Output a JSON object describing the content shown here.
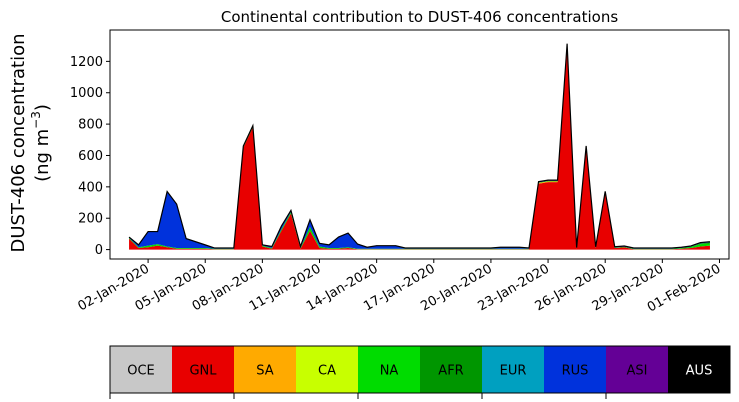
{
  "chart_data": {
    "type": "area",
    "title": "Continental contribution to DUST-406 concentrations",
    "ylabel_line1": "DUST-406 concentration",
    "ylabel_line2": "(ng m",
    "ylabel_unit_sup": "−3",
    "ylabel_close": ")",
    "xlabel": "",
    "ylim": [
      -60,
      1400
    ],
    "yticks": [
      0,
      200,
      400,
      600,
      800,
      1000,
      1200
    ],
    "xlim": [
      -1.0,
      31.5
    ],
    "xtick_days": [
      1,
      4,
      7,
      10,
      13,
      16,
      19,
      22,
      25,
      28,
      31
    ],
    "xtick_labels": [
      "02-Jan-2020",
      "05-Jan-2020",
      "08-Jan-2020",
      "11-Jan-2020",
      "14-Jan-2020",
      "17-Jan-2020",
      "20-Jan-2020",
      "23-Jan-2020",
      "26-Jan-2020",
      "29-Jan-2020",
      "01-Feb-2020"
    ],
    "x_day": [
      0.0,
      0.5,
      1.0,
      1.5,
      2.0,
      2.5,
      3.0,
      3.5,
      4.0,
      4.5,
      5.0,
      5.5,
      6.0,
      6.5,
      7.0,
      7.5,
      8.0,
      8.5,
      9.0,
      9.5,
      10.0,
      10.5,
      11.0,
      11.5,
      12.0,
      12.5,
      13.0,
      13.5,
      14.0,
      14.5,
      15.0,
      15.5,
      16.0,
      16.5,
      17.0,
      17.5,
      18.0,
      18.5,
      19.0,
      19.5,
      20.0,
      20.5,
      21.0,
      21.5,
      22.0,
      22.5,
      23.0,
      23.5,
      24.0,
      24.5,
      25.0,
      25.5,
      26.0,
      26.5,
      27.0,
      27.5,
      28.0,
      28.5,
      29.0,
      29.5,
      30.0,
      30.5
    ],
    "series": [
      {
        "name": "OCE",
        "color": "#c8c8c8",
        "values": [
          0,
          0,
          0,
          0,
          0,
          0,
          0,
          0,
          0,
          0,
          0,
          0,
          0,
          0,
          0,
          0,
          0,
          0,
          0,
          0,
          0,
          0,
          0,
          0,
          0,
          0,
          0,
          0,
          0,
          0,
          0,
          0,
          0,
          0,
          0,
          0,
          0,
          0,
          0,
          0,
          0,
          0,
          0,
          0,
          0,
          0,
          0,
          0,
          0,
          0,
          0,
          0,
          0,
          0,
          0,
          0,
          0,
          0,
          0,
          0,
          0,
          0
        ]
      },
      {
        "name": "GNL",
        "color": "#e80000",
        "values": [
          70,
          10,
          15,
          25,
          15,
          5,
          5,
          5,
          5,
          2,
          2,
          2,
          650,
          780,
          20,
          5,
          120,
          230,
          5,
          120,
          10,
          5,
          5,
          10,
          2,
          2,
          2,
          2,
          2,
          2,
          2,
          2,
          2,
          2,
          2,
          2,
          2,
          2,
          2,
          2,
          2,
          2,
          2,
          420,
          430,
          430,
          1300,
          5,
          650,
          10,
          360,
          10,
          15,
          2,
          2,
          2,
          2,
          2,
          5,
          10,
          20,
          25
        ]
      },
      {
        "name": "SA",
        "color": "#ffaa00",
        "values": [
          0,
          0,
          0,
          0,
          0,
          0,
          0,
          0,
          0,
          0,
          0,
          0,
          0,
          0,
          0,
          0,
          0,
          0,
          0,
          0,
          0,
          0,
          0,
          0,
          0,
          0,
          0,
          0,
          0,
          0,
          0,
          0,
          0,
          0,
          0,
          0,
          0,
          0,
          0,
          0,
          0,
          0,
          0,
          5,
          5,
          5,
          5,
          0,
          3,
          0,
          3,
          0,
          0,
          0,
          0,
          0,
          0,
          0,
          0,
          0,
          0,
          0
        ]
      },
      {
        "name": "CA",
        "color": "#c8ff00",
        "values": [
          0,
          0,
          0,
          0,
          0,
          0,
          0,
          0,
          0,
          0,
          0,
          0,
          0,
          0,
          0,
          0,
          0,
          0,
          0,
          0,
          0,
          0,
          0,
          0,
          0,
          0,
          0,
          0,
          0,
          0,
          0,
          0,
          0,
          0,
          0,
          0,
          0,
          0,
          0,
          0,
          0,
          0,
          0,
          0,
          0,
          0,
          0,
          0,
          0,
          0,
          0,
          0,
          0,
          0,
          0,
          0,
          0,
          0,
          0,
          0,
          0,
          0
        ]
      },
      {
        "name": "NA",
        "color": "#00dc00",
        "values": [
          5,
          5,
          10,
          10,
          5,
          5,
          5,
          5,
          5,
          3,
          3,
          3,
          5,
          5,
          5,
          5,
          10,
          10,
          5,
          25,
          10,
          5,
          5,
          5,
          3,
          3,
          3,
          3,
          3,
          3,
          3,
          3,
          3,
          3,
          3,
          3,
          3,
          3,
          3,
          3,
          3,
          3,
          3,
          3,
          3,
          3,
          3,
          3,
          3,
          3,
          3,
          3,
          3,
          3,
          3,
          3,
          3,
          3,
          5,
          8,
          15,
          15
        ]
      },
      {
        "name": "AFR",
        "color": "#009600",
        "values": [
          0,
          0,
          0,
          0,
          0,
          0,
          0,
          0,
          0,
          0,
          0,
          0,
          0,
          0,
          0,
          0,
          0,
          0,
          0,
          0,
          0,
          0,
          0,
          0,
          0,
          0,
          0,
          0,
          0,
          0,
          0,
          0,
          0,
          0,
          0,
          0,
          0,
          0,
          0,
          0,
          0,
          0,
          0,
          0,
          0,
          0,
          0,
          0,
          0,
          0,
          0,
          0,
          0,
          0,
          0,
          0,
          0,
          0,
          0,
          0,
          5,
          5
        ]
      },
      {
        "name": "EUR",
        "color": "#00a0c0",
        "values": [
          0,
          0,
          0,
          0,
          0,
          0,
          0,
          0,
          0,
          0,
          0,
          0,
          0,
          0,
          0,
          0,
          0,
          0,
          0,
          0,
          0,
          0,
          0,
          0,
          0,
          0,
          0,
          0,
          0,
          0,
          0,
          0,
          0,
          0,
          0,
          0,
          0,
          0,
          0,
          0,
          0,
          0,
          0,
          0,
          0,
          0,
          0,
          0,
          0,
          0,
          0,
          0,
          0,
          0,
          0,
          0,
          0,
          0,
          0,
          0,
          0,
          0
        ]
      },
      {
        "name": "RUS",
        "color": "#0032dc",
        "values": [
          5,
          15,
          90,
          80,
          350,
          280,
          60,
          40,
          20,
          5,
          5,
          5,
          5,
          5,
          5,
          10,
          20,
          10,
          10,
          45,
          20,
          20,
          70,
          90,
          30,
          10,
          20,
          20,
          20,
          5,
          5,
          5,
          5,
          5,
          5,
          5,
          5,
          5,
          5,
          10,
          10,
          10,
          5,
          5,
          5,
          5,
          5,
          5,
          5,
          5,
          5,
          5,
          5,
          5,
          5,
          5,
          5,
          5,
          5,
          5,
          5,
          5
        ]
      },
      {
        "name": "ASI",
        "color": "#640096",
        "values": [
          0,
          0,
          0,
          0,
          0,
          0,
          0,
          0,
          0,
          0,
          0,
          0,
          0,
          0,
          0,
          0,
          0,
          0,
          0,
          0,
          0,
          0,
          0,
          0,
          0,
          0,
          0,
          0,
          0,
          0,
          0,
          0,
          0,
          0,
          0,
          0,
          0,
          0,
          0,
          0,
          0,
          0,
          0,
          0,
          0,
          0,
          0,
          0,
          0,
          0,
          0,
          0,
          0,
          0,
          0,
          0,
          0,
          0,
          0,
          0,
          0,
          0
        ]
      },
      {
        "name": "AUS",
        "color": "#000000",
        "values": [
          0,
          0,
          0,
          0,
          0,
          0,
          0,
          0,
          0,
          0,
          0,
          0,
          0,
          0,
          0,
          0,
          0,
          0,
          0,
          0,
          0,
          0,
          0,
          0,
          0,
          0,
          0,
          0,
          0,
          0,
          0,
          0,
          0,
          0,
          0,
          0,
          0,
          0,
          0,
          0,
          0,
          0,
          0,
          0,
          0,
          0,
          0,
          0,
          0,
          0,
          0,
          0,
          0,
          0,
          0,
          0,
          0,
          0,
          0,
          0,
          0,
          0
        ]
      }
    ],
    "grid": false,
    "legend_placement": "bottom colorbar"
  },
  "legend": {
    "items": [
      {
        "label": "OCE",
        "color": "#c8c8c8",
        "text_color": "#000000"
      },
      {
        "label": "GNL",
        "color": "#e80000",
        "text_color": "#000000"
      },
      {
        "label": "SA",
        "color": "#ffaa00",
        "text_color": "#000000"
      },
      {
        "label": "CA",
        "color": "#c8ff00",
        "text_color": "#000000"
      },
      {
        "label": "NA",
        "color": "#00dc00",
        "text_color": "#000000"
      },
      {
        "label": "AFR",
        "color": "#009600",
        "text_color": "#000000"
      },
      {
        "label": "EUR",
        "color": "#00a0c0",
        "text_color": "#000000"
      },
      {
        "label": "RUS",
        "color": "#0032dc",
        "text_color": "#000000"
      },
      {
        "label": "ASI",
        "color": "#640096",
        "text_color": "#000000"
      },
      {
        "label": "AUS",
        "color": "#000000",
        "text_color": "#ffffff"
      }
    ]
  }
}
